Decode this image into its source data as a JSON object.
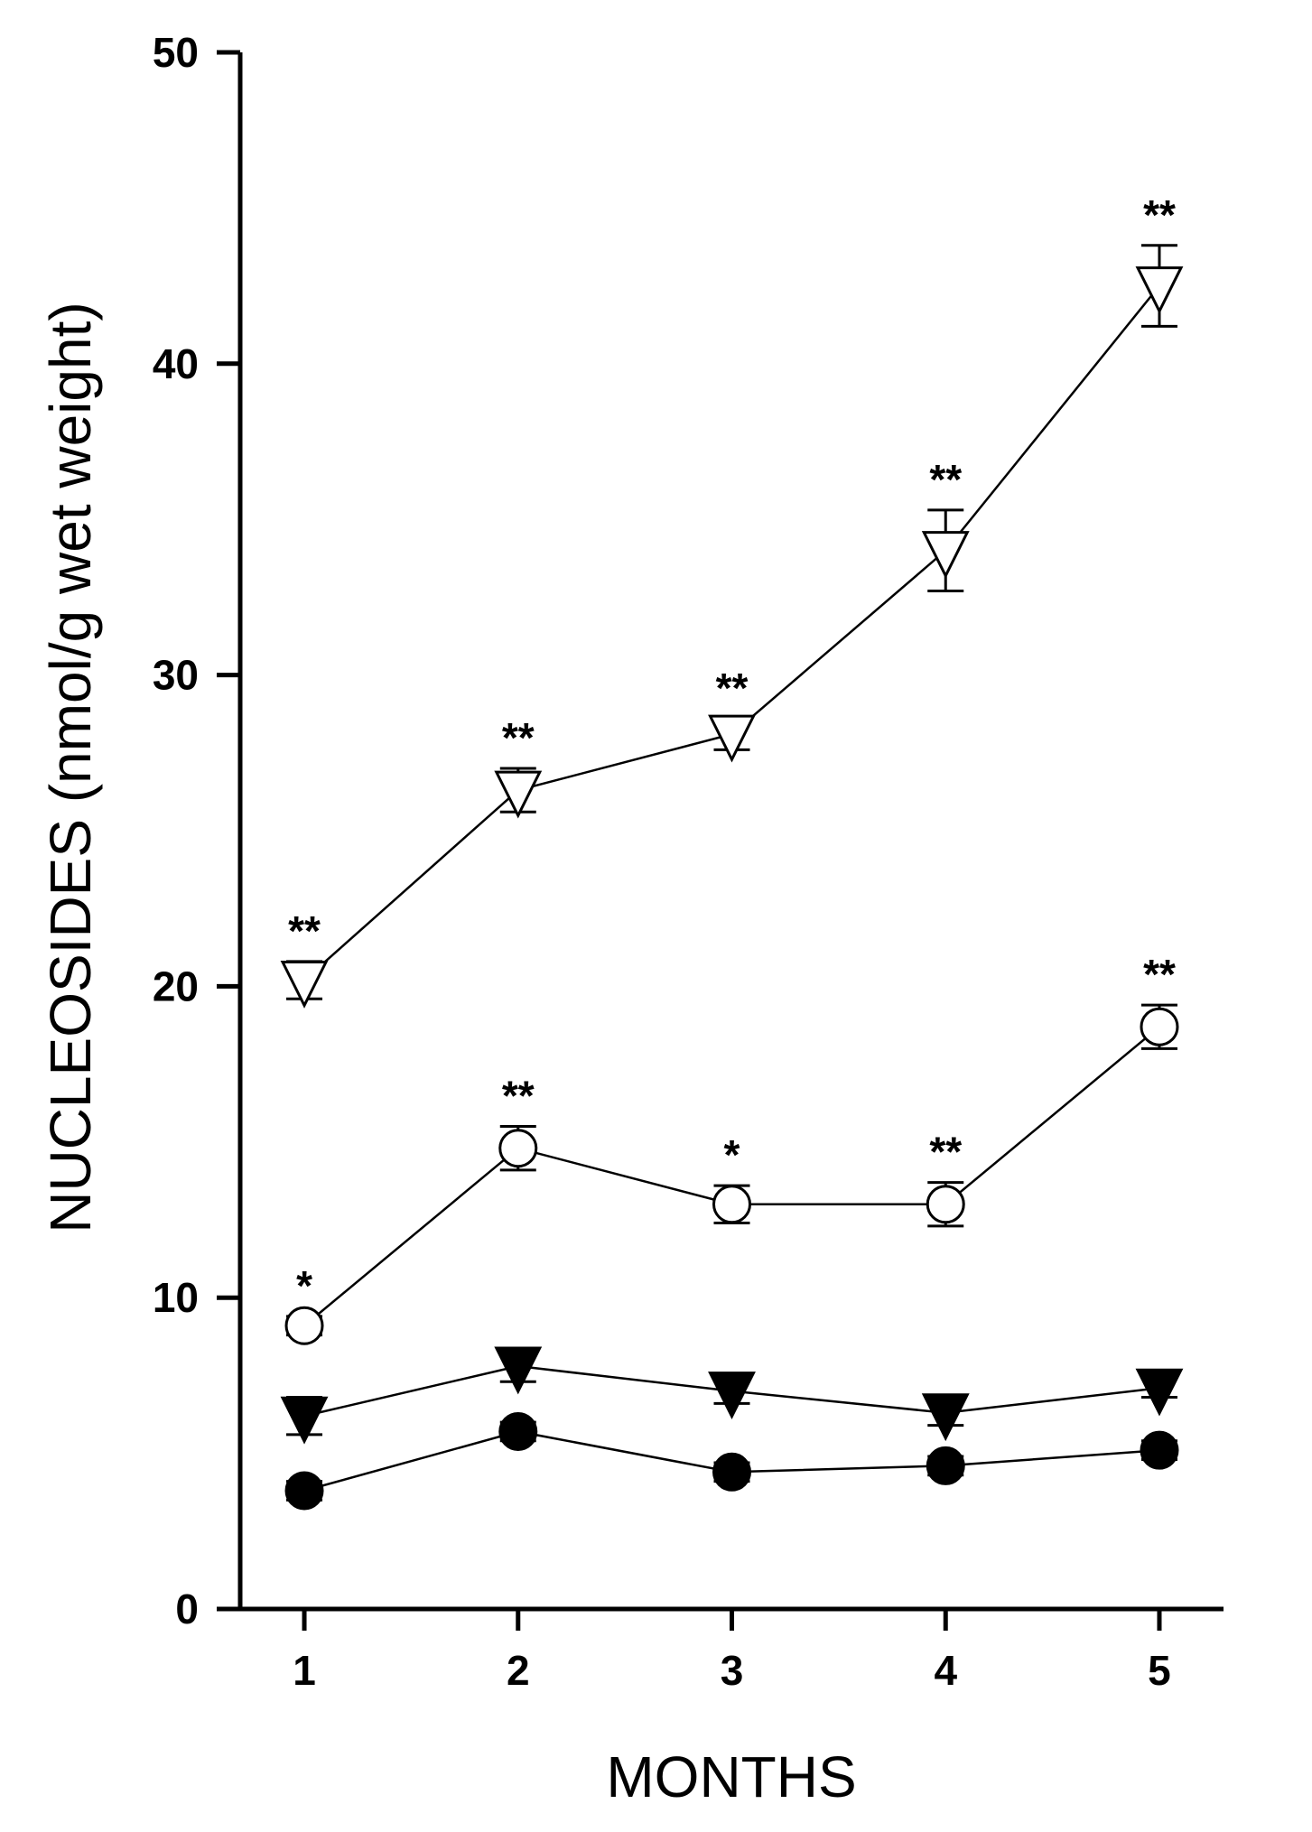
{
  "chart_data": {
    "type": "line",
    "xlabel": "MONTHS",
    "ylabel": "NUCLEOSIDES (nmol/g wet weight)",
    "xlim": [
      0.7,
      5.3
    ],
    "ylim": [
      0,
      50
    ],
    "x_ticks": [
      1,
      2,
      3,
      4,
      5
    ],
    "y_ticks": [
      0,
      10,
      20,
      30,
      40,
      50
    ],
    "grid": false,
    "legend": "none",
    "series": [
      {
        "marker": "triangle-down-open",
        "x": [
          1,
          2,
          3,
          4,
          5
        ],
        "values": [
          20.2,
          26.3,
          28.1,
          34.0,
          42.5
        ],
        "errors": [
          0.6,
          0.7,
          0.5,
          1.3,
          1.3
        ],
        "significance": [
          "**",
          "**",
          "**",
          "**",
          "**"
        ]
      },
      {
        "marker": "circle-open",
        "x": [
          1,
          2,
          3,
          4,
          5
        ],
        "values": [
          9.1,
          14.8,
          13.0,
          13.0,
          18.7
        ],
        "errors": [
          0.3,
          0.7,
          0.6,
          0.7,
          0.7
        ],
        "significance": [
          "*",
          "**",
          "*",
          "**",
          "**"
        ]
      },
      {
        "marker": "triangle-down-filled",
        "x": [
          1,
          2,
          3,
          4,
          5
        ],
        "values": [
          6.2,
          7.8,
          7.0,
          6.3,
          7.1
        ],
        "errors": [
          0.6,
          0.5,
          0.4,
          0.4,
          0.3
        ],
        "significance": [
          "",
          "",
          "",
          "",
          ""
        ]
      },
      {
        "marker": "circle-filled",
        "x": [
          1,
          2,
          3,
          4,
          5
        ],
        "values": [
          3.8,
          5.7,
          4.4,
          4.6,
          5.1
        ],
        "errors": [
          0.3,
          0.3,
          0.3,
          0.3,
          0.3
        ],
        "significance": [
          "",
          "",
          "",
          "",
          ""
        ]
      }
    ]
  }
}
